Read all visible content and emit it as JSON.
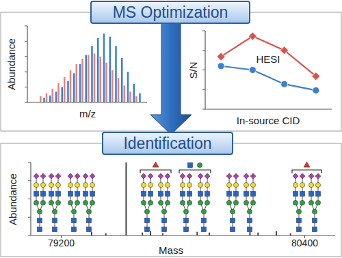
{
  "headers": [
    "MS Optimization",
    "Identification"
  ],
  "chart_data": [
    {
      "type": "bar",
      "xlabel": "m/z",
      "ylabel": "Abundance",
      "xlim": [
        0,
        100
      ],
      "ylim": [
        0,
        100
      ],
      "yticks": [
        0,
        20,
        40,
        60,
        80,
        100
      ],
      "tick_labels": false,
      "series": [
        {
          "color": "#e8837a",
          "x": [
            11,
            16,
            21,
            26,
            31,
            36,
            41,
            46,
            51,
            56,
            61,
            66,
            71,
            76,
            81,
            86,
            91
          ],
          "values": [
            8,
            12,
            18,
            25,
            33,
            42,
            50,
            57,
            62,
            64,
            60,
            52,
            42,
            32,
            22,
            14,
            8
          ]
        },
        {
          "color": "#3a7fd5",
          "x": [
            14,
            19,
            24,
            29,
            34,
            39,
            44,
            49,
            54,
            59,
            64,
            69,
            74,
            79,
            84,
            89,
            94
          ],
          "values": [
            6,
            9,
            14,
            20,
            28,
            38,
            50,
            62,
            74,
            84,
            90,
            86,
            74,
            58,
            40,
            24,
            12
          ]
        }
      ]
    },
    {
      "type": "line",
      "xlabel": "In-source CID",
      "ylabel": "S/N",
      "annotation": "HESI",
      "x": [
        1,
        2,
        3,
        4
      ],
      "xlim": [
        0.5,
        4.5
      ],
      "ylim": [
        0,
        100
      ],
      "yticks": [
        0,
        25,
        50,
        75,
        100
      ],
      "tick_labels": false,
      "series": [
        {
          "color": "#d9534f",
          "marker": "diamond",
          "values": [
            67,
            93,
            75,
            42
          ]
        },
        {
          "color": "#3d7fd0",
          "marker": "circle",
          "values": [
            55,
            50,
            32,
            24
          ]
        }
      ]
    },
    {
      "type": "bar",
      "xlabel": "Mass",
      "ylabel": "Abundance",
      "xlim": [
        79050,
        80550
      ],
      "ylim": [
        0,
        100
      ],
      "xticks": [
        79200,
        80400
      ],
      "yticks": [
        0,
        25,
        50,
        75,
        100
      ],
      "tick_labels": "x",
      "series": [
        {
          "color": "#444444",
          "x": [
            79350,
            79420,
            79520,
            79600,
            79640,
            79700,
            79870,
            79930,
            80130,
            80170,
            80260,
            80330
          ],
          "values": [
            5,
            3,
            100,
            4,
            6,
            3,
            5,
            4,
            5,
            4,
            6,
            3
          ]
        }
      ]
    }
  ]
}
